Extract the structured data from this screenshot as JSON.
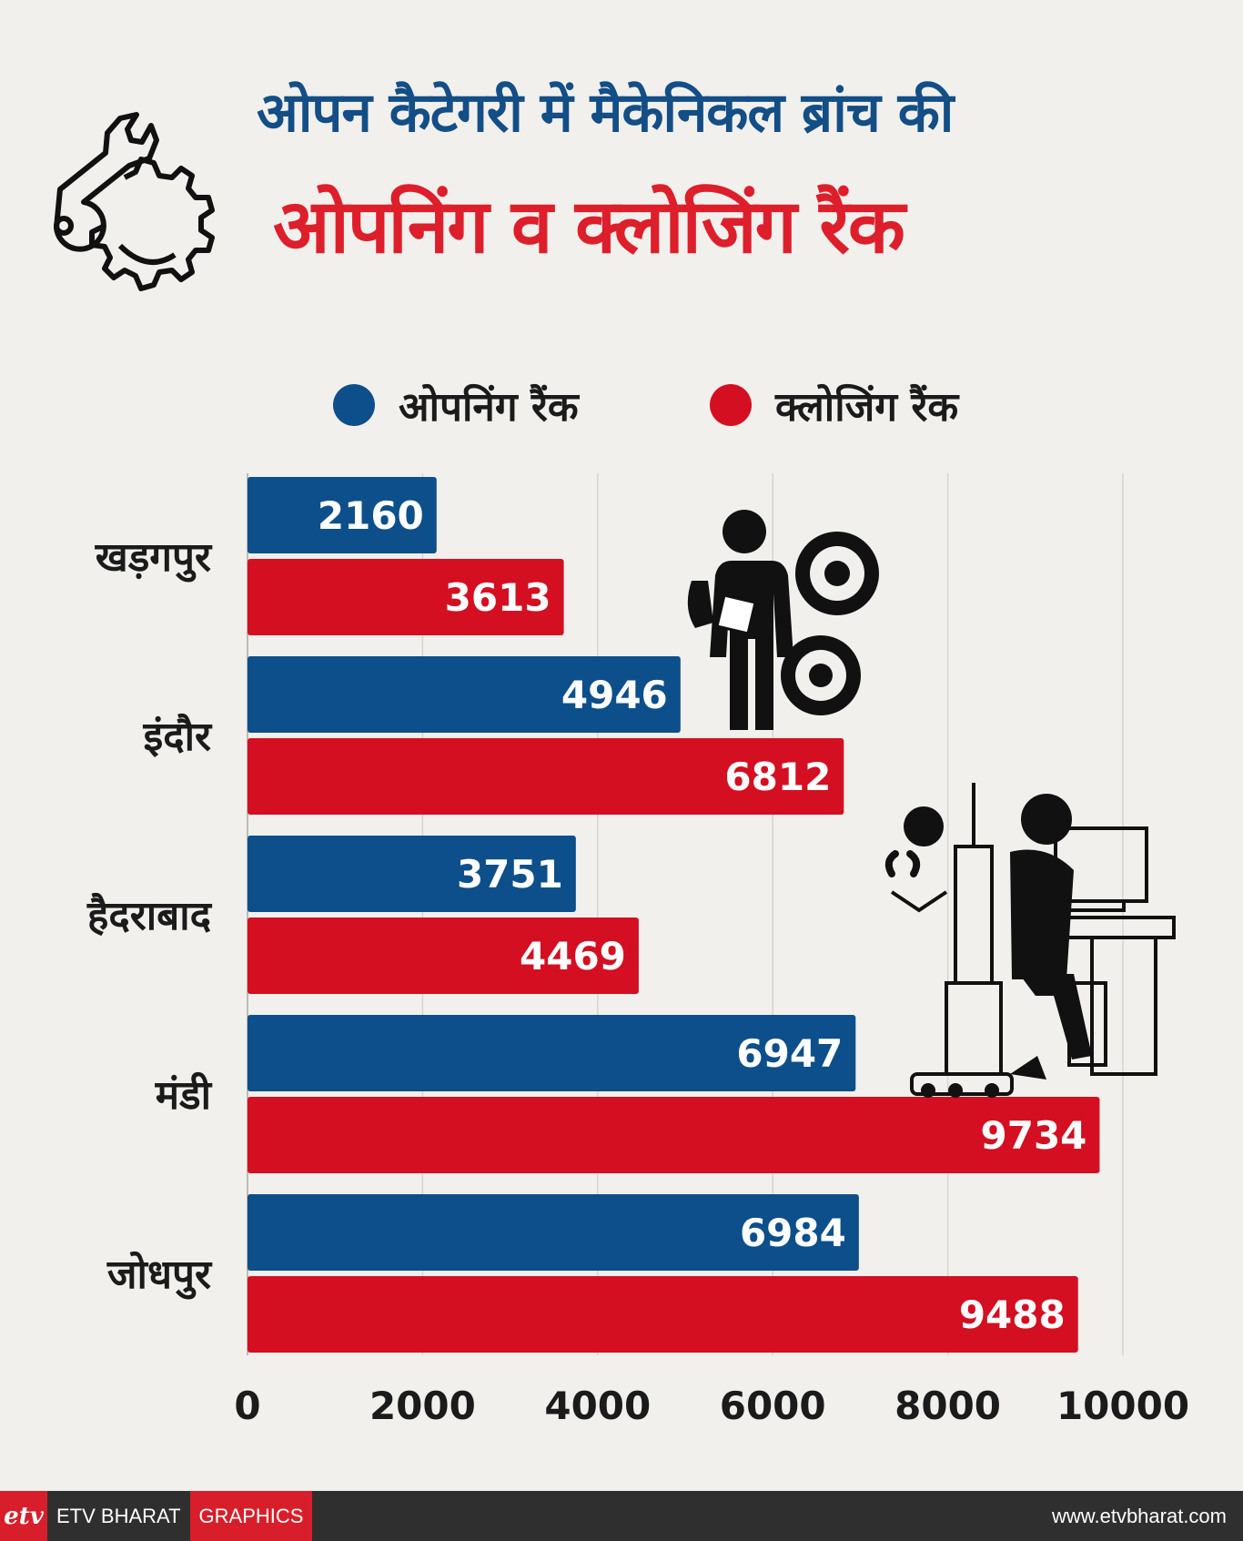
{
  "header": {
    "line1": "ओपन कैटेगरी में मैकेनिकल ब्रांच की",
    "line2": "ओपनिंग व क्लोजिंग रैंक"
  },
  "chart_data": {
    "type": "bar",
    "orientation": "horizontal",
    "title": "",
    "xlabel": "",
    "ylabel": "",
    "xlim": [
      0,
      10000
    ],
    "ticks": [
      0,
      2000,
      4000,
      6000,
      8000,
      10000
    ],
    "grid": true,
    "legend_position": "top",
    "categories": [
      "खड़गपुर",
      "इंदौर",
      "हैदराबाद",
      "मंडी",
      "जोधपुर"
    ],
    "series": [
      {
        "name": "ओपनिंग रैंक",
        "color": "#0d4f8b",
        "values": [
          2160,
          4946,
          3751,
          6947,
          6984
        ]
      },
      {
        "name": "क्लोजिंग रैंक",
        "color": "#d40f22",
        "values": [
          3613,
          6812,
          4469,
          9734,
          9488
        ]
      }
    ]
  },
  "footer": {
    "logo": "etv",
    "brand": "ETV BHARAT",
    "graphics": "GRAPHICS",
    "site": "www.etvbharat.com"
  },
  "icons": [
    "gear-wrench-icon",
    "student-gears-icon",
    "engineer-robot-icon"
  ]
}
